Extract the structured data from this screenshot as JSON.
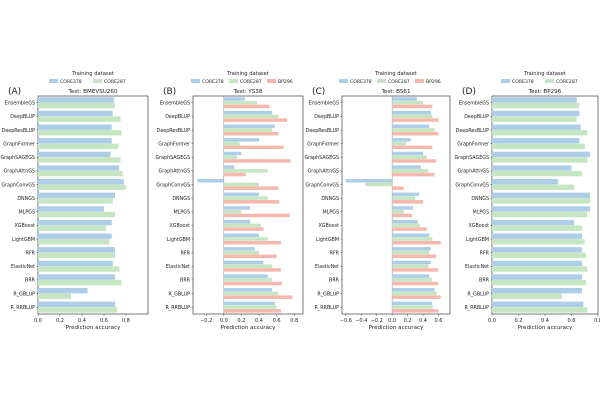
{
  "colors": {
    "CORE378": "#aecde6",
    "CORE287": "#c6e6c3",
    "BP296": "#f6b8ad",
    "axis": "#222222",
    "zero_line": "#666666"
  },
  "chart_data": [
    {
      "type": "bar",
      "orientation": "horizontal",
      "panel_label": "(A)",
      "title": "Test: BMEVSU260",
      "legend_title": "Training dataset",
      "legend_position": "top",
      "xlabel": "Prediction accuracy",
      "xlim": [
        0,
        1.0
      ],
      "xticks": [
        0.0,
        0.2,
        0.4,
        0.6,
        0.8
      ],
      "xtick_labels": [
        "0.0",
        "0.2",
        "0.4",
        "0.6",
        "0.8"
      ],
      "categories": [
        "EnsembleGS",
        "DeepBLUP",
        "DeepResBLUP",
        "GraphFormer",
        "GraphSAGEGS",
        "GraphAttnGS",
        "GraphConvGS",
        "DNNGS",
        "MLPGS",
        "XGBoost",
        "LightGBM",
        "RFR",
        "ElasticNet",
        "BRR",
        "R_GBLUP",
        "R_RRBLUP"
      ],
      "series": [
        {
          "name": "CORE378",
          "color_key": "CORE378",
          "values": [
            0.69,
            0.68,
            0.67,
            0.67,
            0.66,
            0.74,
            0.78,
            0.7,
            0.6,
            0.67,
            0.67,
            0.7,
            0.68,
            0.7,
            0.45,
            0.7
          ]
        },
        {
          "name": "CORE287",
          "color_key": "CORE287",
          "values": [
            0.7,
            0.75,
            0.76,
            0.73,
            0.75,
            0.77,
            0.8,
            0.68,
            0.7,
            0.62,
            0.65,
            0.7,
            0.74,
            0.76,
            0.3,
            0.72
          ]
        }
      ]
    },
    {
      "type": "bar",
      "orientation": "horizontal",
      "panel_label": "(B)",
      "title": "Test: YS38",
      "legend_title": "Training dataset",
      "legend_position": "top",
      "xlabel": "Prediction accuracy",
      "xlim": [
        -0.35,
        0.9
      ],
      "xticks": [
        -0.2,
        0.0,
        0.2,
        0.4,
        0.6,
        0.8
      ],
      "xtick_labels": [
        "−0.2",
        "0.0",
        "0.2",
        "0.4",
        "0.6",
        "0.8"
      ],
      "categories": [
        "EnsembleGS",
        "DeepBLUP",
        "DeepResBLUP",
        "GraphFormer",
        "GraphSAGEGS",
        "GraphAttnGS",
        "GraphConvGS",
        "DNNGS",
        "MLPGS",
        "XGBoost",
        "LightGBM",
        "RFR",
        "ElasticNet",
        "BRR",
        "R_GBLUP",
        "R_RRBLUP"
      ],
      "series": [
        {
          "name": "CORE378",
          "color_key": "CORE378",
          "values": [
            0.24,
            0.55,
            0.58,
            0.4,
            0.2,
            0.12,
            -0.3,
            0.4,
            0.3,
            0.3,
            0.4,
            0.35,
            0.45,
            0.5,
            0.55,
            0.58
          ]
        },
        {
          "name": "CORE287",
          "color_key": "CORE287",
          "values": [
            0.38,
            0.62,
            0.55,
            0.18,
            0.15,
            0.5,
            0.4,
            0.5,
            0.2,
            0.42,
            0.5,
            0.4,
            0.55,
            0.55,
            0.62,
            0.6
          ]
        },
        {
          "name": "BP296",
          "color_key": "BP296",
          "values": [
            0.52,
            0.72,
            0.62,
            0.68,
            0.76,
            0.25,
            0.62,
            0.63,
            0.75,
            0.45,
            0.65,
            0.6,
            0.65,
            0.66,
            0.78,
            0.65
          ]
        }
      ]
    },
    {
      "type": "bar",
      "orientation": "horizontal",
      "panel_label": "(C)",
      "title": "Test: BS61",
      "legend_title": "Training dataset",
      "legend_position": "top",
      "xlabel": "Prediction accuracy",
      "xlim": [
        -0.65,
        0.75
      ],
      "xticks": [
        -0.6,
        -0.4,
        -0.2,
        0.0,
        0.2,
        0.4,
        0.6
      ],
      "xtick_labels": [
        "−0.6",
        "−0.4",
        "−0.2",
        "0.0",
        "0.2",
        "0.4",
        "0.6"
      ],
      "categories": [
        "EnsembleGS",
        "DeepBLUP",
        "DeepResBLUP",
        "GraphFormer",
        "GraphSAGEGS",
        "GraphAttnGS",
        "GraphConvGS",
        "DNNGS",
        "MLPGS",
        "XGBoost",
        "LightGBM",
        "RFR",
        "ElasticNet",
        "BRR",
        "R_GBLUP",
        "R_RRBLUP"
      ],
      "series": [
        {
          "name": "CORE378",
          "color_key": "CORE378",
          "values": [
            0.32,
            0.5,
            0.48,
            0.24,
            0.4,
            0.37,
            -0.6,
            0.35,
            0.27,
            0.33,
            0.48,
            0.5,
            0.5,
            0.48,
            0.55,
            0.52
          ]
        },
        {
          "name": "CORE287",
          "color_key": "CORE287",
          "values": [
            0.4,
            0.52,
            0.55,
            0.18,
            0.45,
            0.47,
            -0.35,
            0.3,
            0.15,
            0.36,
            0.52,
            0.48,
            0.47,
            0.52,
            0.58,
            0.53
          ]
        },
        {
          "name": "BP296",
          "color_key": "BP296",
          "values": [
            0.52,
            0.6,
            0.6,
            0.52,
            0.57,
            0.55,
            0.15,
            0.4,
            0.26,
            0.45,
            0.63,
            0.57,
            0.6,
            0.6,
            0.63,
            0.6
          ]
        }
      ]
    },
    {
      "type": "bar",
      "orientation": "horizontal",
      "panel_label": "(D)",
      "title": "Test: BP296",
      "legend_title": "Training dataset",
      "legend_position": "top",
      "xlabel": "Prediction accuracy",
      "xlim": [
        0,
        0.8
      ],
      "xticks": [
        0.0,
        0.2,
        0.4,
        0.6,
        0.8
      ],
      "xtick_labels": [
        "0.0",
        "0.2",
        "0.4",
        "0.6",
        "0.8"
      ],
      "categories": [
        "EnsembleGS",
        "DeepBLUP",
        "DeepResBLUP",
        "GraphFormer",
        "GraphSAGEGS",
        "GraphAttnGS",
        "GraphConvGS",
        "DNNGS",
        "MLPGS",
        "XGBoost",
        "LightGBM",
        "RFR",
        "ElasticNet",
        "BRR",
        "R_GBLUP",
        "R_RRBLUP"
      ],
      "series": [
        {
          "name": "CORE378",
          "color_key": "CORE378",
          "values": [
            0.64,
            0.66,
            0.67,
            0.66,
            0.74,
            0.6,
            0.5,
            0.74,
            0.74,
            0.62,
            0.68,
            0.68,
            0.68,
            0.68,
            0.68,
            0.69
          ]
        },
        {
          "name": "CORE287",
          "color_key": "CORE287",
          "values": [
            0.66,
            0.64,
            0.72,
            0.7,
            0.72,
            0.68,
            0.62,
            0.74,
            0.72,
            0.68,
            0.7,
            0.71,
            0.72,
            0.71,
            0.53,
            0.72
          ]
        }
      ]
    }
  ]
}
